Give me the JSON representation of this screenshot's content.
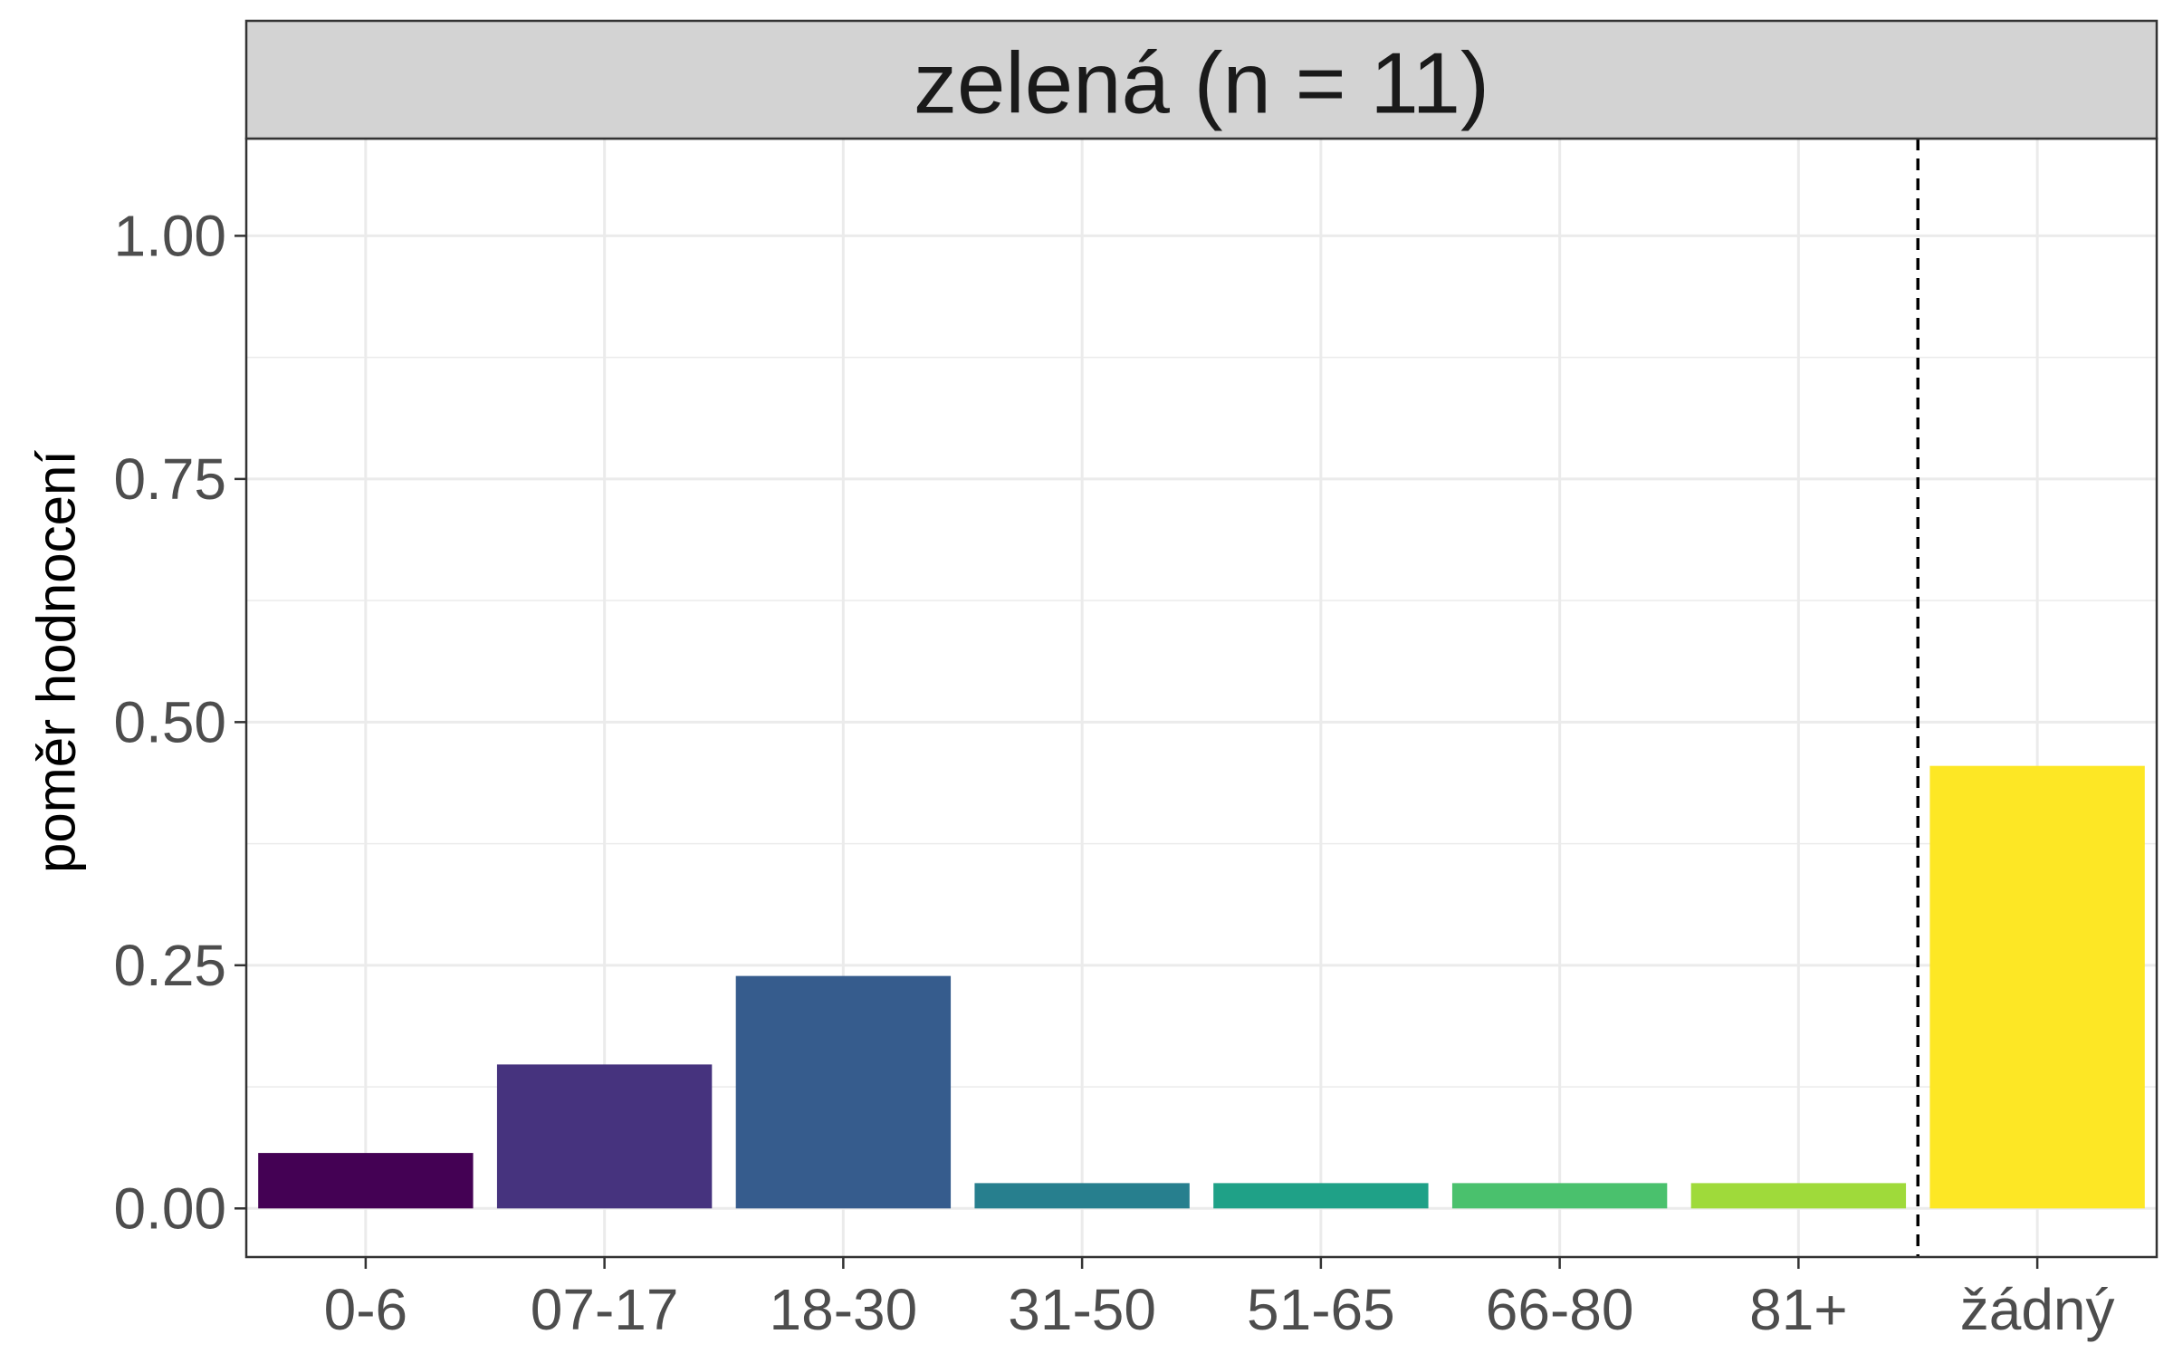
{
  "chart_data": {
    "type": "bar",
    "title": "zelená (n = 11)",
    "xlabel": "",
    "ylabel": "poměr hodnocení",
    "categories": [
      "0-6",
      "07-17",
      "18-30",
      "31-50",
      "51-65",
      "66-80",
      "81+",
      "žádný"
    ],
    "values": [
      0.057,
      0.148,
      0.239,
      0.026,
      0.026,
      0.026,
      0.026,
      0.455
    ],
    "colors": [
      "#440154",
      "#46337E",
      "#365C8D",
      "#277F8E",
      "#1FA187",
      "#4AC16D",
      "#9FDA3A",
      "#FDE725"
    ],
    "ylim": [
      -0.05,
      1.1
    ],
    "yticks": [
      0.0,
      0.25,
      0.5,
      0.75,
      1.0
    ],
    "ytick_labels": [
      "0.00",
      "0.25",
      "0.50",
      "0.75",
      "1.00"
    ],
    "grid": true,
    "reference_line": {
      "between_categories": [
        "81+",
        "žádný"
      ],
      "style": "dashed",
      "color": "#000000"
    },
    "strip_color": "#d3d3d3",
    "grid_color": "#ebebeb"
  }
}
